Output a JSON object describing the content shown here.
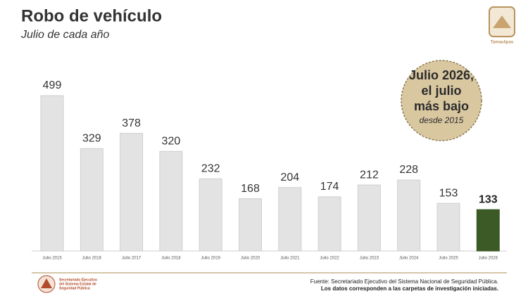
{
  "chart_data": {
    "type": "bar",
    "title": "Robo de vehículo",
    "subtitle": "Julio de cada año",
    "categories": [
      "Julio 2015",
      "Julio 2016",
      "Julio 2017",
      "Julio 2018",
      "Julio 2019",
      "Julio 2020",
      "Julio 2021",
      "Julio 2022",
      "Julio 2023",
      "Julio 2024",
      "Julio 2025",
      "Julio 2026"
    ],
    "values": [
      499,
      329,
      378,
      320,
      232,
      168,
      204,
      174,
      212,
      228,
      153,
      133
    ],
    "colors": [
      "#e3e3e3",
      "#e3e3e3",
      "#e3e3e3",
      "#e3e3e3",
      "#e3e3e3",
      "#e3e3e3",
      "#e3e3e3",
      "#e3e3e3",
      "#e3e3e3",
      "#e3e3e3",
      "#e3e3e3",
      "#3b5a26"
    ],
    "annotation": {
      "lines": [
        "Julio 2026,",
        "el julio",
        "más bajo"
      ],
      "note": "desde 2015"
    },
    "source": [
      "Fuente: Secretariado Ejecutivo del Sistema Nacional de Seguridad Pública.",
      "Los datos corresponden a las carpetas de investigación iniciadas."
    ],
    "logo_right": "Tamaulipas",
    "logo_left": [
      "Secretariado Ejecutivo",
      "del Sistema Estatal de",
      "Seguridad Pública"
    ]
  }
}
